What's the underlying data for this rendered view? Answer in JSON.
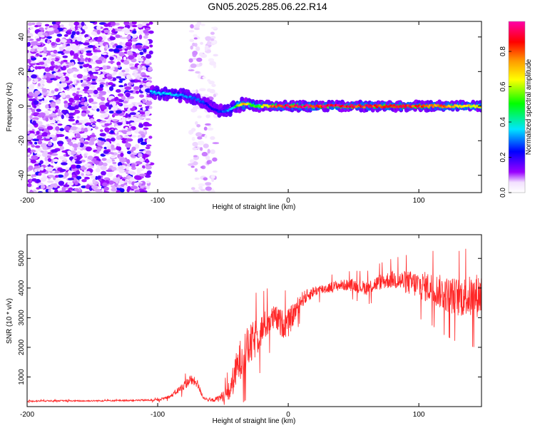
{
  "figure": {
    "title": "GN05.2025.285.06.22.R14"
  },
  "chart_data": [
    {
      "type": "heatmap",
      "title": "GN05.2025.285.06.22.R14",
      "xlabel": "Height of straight line (km)",
      "ylabel": "Frequency (Hz)",
      "xlim": [
        -200,
        148
      ],
      "ylim": [
        -50,
        49
      ],
      "x_ticks": [
        -200,
        -100,
        0,
        100
      ],
      "y_ticks": [
        -40,
        -20,
        0,
        20,
        40
      ],
      "colorbar": {
        "label": "Normalized spectral amplitude",
        "range": [
          0.0,
          0.97
        ],
        "ticks": [
          0.0,
          0.2,
          0.4,
          0.6,
          0.8
        ],
        "colormap": [
          "#ffffff",
          "#9900ff",
          "#0000ff",
          "#00e5ff",
          "#00ff00",
          "#ffff00",
          "#ff9900",
          "#ff0000",
          "#ff00aa"
        ]
      },
      "regions": [
        {
          "x_range": [
            -200,
            -105
          ],
          "freq_range": [
            -50,
            49
          ],
          "amplitude": "0.05-0.25 scattered noise"
        },
        {
          "x_range": [
            -75,
            -55
          ],
          "freq_range": [
            -50,
            49
          ],
          "amplitude": "0.02-0.1 faint band"
        },
        {
          "x_range": [
            -105,
            148
          ],
          "ridge": "narrow spectral line"
        }
      ],
      "ridge": {
        "x": [
          -105,
          -90,
          -80,
          -70,
          -60,
          -55,
          -50,
          -45,
          -40,
          -35,
          -30,
          -25,
          -20,
          -10,
          0,
          20,
          40,
          60,
          80,
          100,
          120,
          148
        ],
        "freq": [
          8,
          7,
          6,
          4,
          0,
          -3,
          -3,
          -2,
          0,
          1,
          1,
          0,
          0,
          0,
          0,
          0,
          0,
          0,
          0,
          0,
          0,
          0
        ],
        "amplitude": [
          0.35,
          0.4,
          0.35,
          0.3,
          0.25,
          0.25,
          0.3,
          0.35,
          0.5,
          0.8,
          0.6,
          0.55,
          0.65,
          0.9,
          0.95,
          0.95,
          0.95,
          0.9,
          0.9,
          0.9,
          0.8,
          0.7
        ]
      }
    },
    {
      "type": "line",
      "xlabel": "Height of straight line (km)",
      "ylabel": "SNR (10 * v/v)",
      "xlim": [
        -200,
        148
      ],
      "ylim": [
        0,
        5800
      ],
      "x_ticks": [
        -200,
        -100,
        0,
        100
      ],
      "y_ticks": [
        1000,
        2000,
        3000,
        4000,
        5000
      ],
      "color": "#ff0000",
      "series": [
        {
          "x": [
            -200,
            -180,
            -160,
            -140,
            -120,
            -100,
            -90,
            -80,
            -75,
            -70,
            -65,
            -60,
            -55,
            -50,
            -45,
            -40,
            -35,
            -30,
            -25,
            -20,
            -15,
            -10,
            -5,
            0,
            5,
            10,
            20,
            30,
            40,
            50,
            60,
            70,
            80,
            90,
            100,
            110,
            120,
            130,
            140,
            148
          ],
          "y": [
            180,
            200,
            190,
            200,
            210,
            220,
            350,
            700,
            900,
            800,
            300,
            200,
            250,
            350,
            500,
            1200,
            1800,
            2000,
            2300,
            2600,
            2900,
            3000,
            2800,
            2800,
            3200,
            3600,
            3900,
            4000,
            4100,
            4100,
            4000,
            4200,
            4300,
            4200,
            4100,
            4000,
            3800,
            3700,
            3700,
            3800
          ],
          "noise_amplitude": [
            40,
            40,
            40,
            40,
            40,
            60,
            100,
            250,
            300,
            250,
            100,
            80,
            150,
            300,
            600,
            1000,
            1200,
            1200,
            1100,
            900,
            800,
            700,
            800,
            800,
            600,
            450,
            300,
            300,
            300,
            350,
            400,
            450,
            500,
            650,
            800,
            900,
            1000,
            1100,
            1200,
            1300
          ]
        }
      ]
    }
  ]
}
